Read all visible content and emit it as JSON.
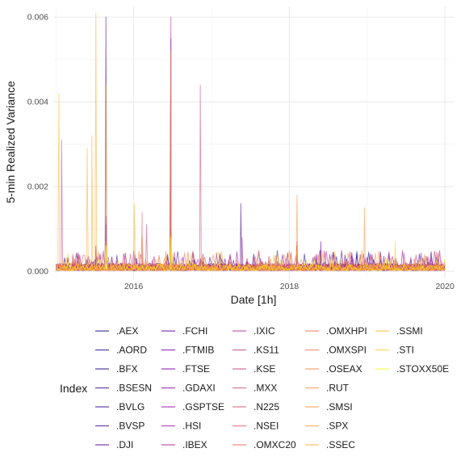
{
  "chart_data": {
    "type": "line",
    "xlabel": "Date [1h]",
    "ylabel": "5-min Realized Variance",
    "xlim": [
      "2014-12-20",
      "2020-02-15"
    ],
    "ylim": [
      -0.00017,
      0.00625
    ],
    "x_ticks": [
      "2016-01-01",
      "2018-01-01",
      "2020-01-01"
    ],
    "x_tick_labels": [
      "2016",
      "2018",
      "2020"
    ],
    "y_ticks": [
      0.0,
      0.002,
      0.004,
      0.006
    ],
    "y_tick_labels": [
      "0.000",
      "0.002",
      "0.004",
      "0.006"
    ],
    "grid": true,
    "legend_title": "Index",
    "legend_position": "bottom",
    "baseline_range": [
      "2015-01-02",
      "2019-12-31"
    ],
    "series": [
      {
        "name": ".AEX",
        "color": "#0d0887",
        "spikes": [
          [
            "2015-08-24",
            0.00055
          ],
          [
            "2016-06-24",
            0.0009
          ],
          [
            "2018-02-06",
            0.0003
          ]
        ]
      },
      {
        "name": ".AORD",
        "color": "#160888",
        "spikes": [
          [
            "2015-08-24",
            0.0004
          ],
          [
            "2016-01-15",
            0.0003
          ]
        ]
      },
      {
        "name": ".BFX",
        "color": "#210789",
        "spikes": [
          [
            "2015-08-24",
            0.0005
          ],
          [
            "2016-06-24",
            0.0008
          ]
        ]
      },
      {
        "name": ".BSESN",
        "color": "#2d068c",
        "spikes": [
          [
            "2015-08-24",
            0.0004
          ],
          [
            "2016-11-09",
            0.0003
          ]
        ]
      },
      {
        "name": ".BVLG",
        "color": "#3b058f",
        "spikes": [
          [
            "2015-08-24",
            0.0005
          ],
          [
            "2016-06-24",
            0.0009
          ]
        ]
      },
      {
        "name": ".BVSP",
        "color": "#470592",
        "spikes": [
          [
            "2015-08-24",
            0.006
          ],
          [
            "2016-06-24",
            0.0009
          ],
          [
            "2017-05-18",
            0.0016
          ],
          [
            "2018-05-28",
            0.0005
          ]
        ]
      },
      {
        "name": ".DJI",
        "color": "#55049a",
        "spikes": [
          [
            "2015-08-24",
            0.0011
          ],
          [
            "2018-02-05",
            0.0006
          ]
        ]
      },
      {
        "name": ".FCHI",
        "color": "#62039e",
        "spikes": [
          [
            "2015-08-24",
            0.0006
          ],
          [
            "2016-06-24",
            0.001
          ]
        ]
      },
      {
        "name": ".FTMIB",
        "color": "#6f00a8",
        "spikes": [
          [
            "2015-08-24",
            0.0006
          ],
          [
            "2016-06-24",
            0.0055
          ],
          [
            "2018-05-29",
            0.0007
          ]
        ]
      },
      {
        "name": ".FTSE",
        "color": "#7c02a8",
        "spikes": [
          [
            "2015-08-24",
            0.0005
          ],
          [
            "2016-06-24",
            0.0008
          ]
        ]
      },
      {
        "name": ".GDAXI",
        "color": "#8808a6",
        "spikes": [
          [
            "2015-08-24",
            0.0006
          ],
          [
            "2016-06-24",
            0.0009
          ]
        ]
      },
      {
        "name": ".GSPTSE",
        "color": "#9511a1",
        "spikes": [
          [
            "2015-08-24",
            0.0005
          ],
          [
            "2016-06-24",
            0.0004
          ]
        ]
      },
      {
        "name": ".HSI",
        "color": "#a01a9c",
        "spikes": [
          [
            "2015-07-08",
            0.0006
          ],
          [
            "2015-08-24",
            0.0007
          ]
        ]
      },
      {
        "name": ".IBEX",
        "color": "#aa2395",
        "spikes": [
          [
            "2015-08-24",
            0.0006
          ],
          [
            "2016-06-24",
            0.006
          ]
        ]
      },
      {
        "name": ".IXIC",
        "color": "#b52f8c",
        "spikes": [
          [
            "2015-08-24",
            0.0013
          ],
          [
            "2018-02-05",
            0.0006
          ]
        ]
      },
      {
        "name": ".KS11",
        "color": "#be3885",
        "spikes": [
          [
            "2015-08-24",
            0.0005
          ],
          [
            "2016-06-24",
            0.0004
          ]
        ]
      },
      {
        "name": ".KSE",
        "color": "#c7427c",
        "spikes": [
          [
            "2015-01-28",
            0.0031
          ],
          [
            "2016-03-02",
            0.0011
          ],
          [
            "2017-05-24",
            0.0008
          ]
        ]
      },
      {
        "name": ".MXX",
        "color": "#cf4c74",
        "spikes": [
          [
            "2016-11-09",
            0.0044
          ],
          [
            "2015-08-24",
            0.0006
          ]
        ]
      },
      {
        "name": ".N225",
        "color": "#d6556d",
        "spikes": [
          [
            "2016-06-24",
            0.0017
          ],
          [
            "2015-08-25",
            0.0007
          ],
          [
            "2018-02-06",
            0.0007
          ]
        ]
      },
      {
        "name": ".NSEI",
        "color": "#dd5e66",
        "spikes": [
          [
            "2015-08-24",
            0.0004
          ],
          [
            "2016-11-09",
            0.0003
          ]
        ]
      },
      {
        "name": ".OMXC20",
        "color": "#e3685f",
        "spikes": [
          [
            "2016-02-10",
            0.0014
          ],
          [
            "2016-06-24",
            0.0009
          ]
        ]
      },
      {
        "name": ".OMXHPI",
        "color": "#e97257",
        "spikes": [
          [
            "2015-08-24",
            0.0006
          ],
          [
            "2016-06-24",
            0.0009
          ]
        ]
      },
      {
        "name": ".OMXSPI",
        "color": "#ed7c50",
        "spikes": [
          [
            "2015-08-24",
            0.0006
          ],
          [
            "2016-06-24",
            0.0009
          ]
        ]
      },
      {
        "name": ".OSEAX",
        "color": "#f2844b",
        "spikes": [
          [
            "2015-08-24",
            0.0007
          ],
          [
            "2016-02-11",
            0.0008
          ]
        ]
      },
      {
        "name": ".RUT",
        "color": "#f68f44",
        "spikes": [
          [
            "2015-08-24",
            0.0006
          ],
          [
            "2018-02-05",
            0.0006
          ]
        ]
      },
      {
        "name": ".SMSI",
        "color": "#f89540",
        "spikes": [
          [
            "2015-08-24",
            0.0006
          ],
          [
            "2016-06-24",
            0.0052
          ],
          [
            "2018-02-06",
            0.0018
          ],
          [
            "2018-12-20",
            0.0015
          ]
        ]
      },
      {
        "name": ".SPX",
        "color": "#fba238",
        "spikes": [
          [
            "2015-08-24",
            0.0006
          ],
          [
            "2018-02-05",
            0.0005
          ]
        ]
      },
      {
        "name": ".SSEC",
        "color": "#fcad33",
        "spikes": [
          [
            "2015-07-08",
            0.0061
          ],
          [
            "2015-06-19",
            0.0032
          ],
          [
            "2015-08-25",
            0.0044
          ],
          [
            "2016-01-04",
            0.0016
          ],
          [
            "2015-05-28",
            0.0029
          ]
        ]
      },
      {
        "name": ".SSMI",
        "color": "#fdba2c",
        "spikes": [
          [
            "2015-01-15",
            0.0042
          ],
          [
            "2015-08-24",
            0.0006
          ],
          [
            "2016-06-24",
            0.0008
          ]
        ]
      },
      {
        "name": ".STI",
        "color": "#fec929",
        "spikes": [
          [
            "2015-08-24",
            0.0006
          ],
          [
            "2019-05-13",
            0.0007
          ]
        ]
      },
      {
        "name": ".STOXX50E",
        "color": "#f0f921",
        "spikes": [
          [
            "2015-08-24",
            0.0006
          ],
          [
            "2016-06-24",
            0.0008
          ]
        ]
      }
    ]
  }
}
